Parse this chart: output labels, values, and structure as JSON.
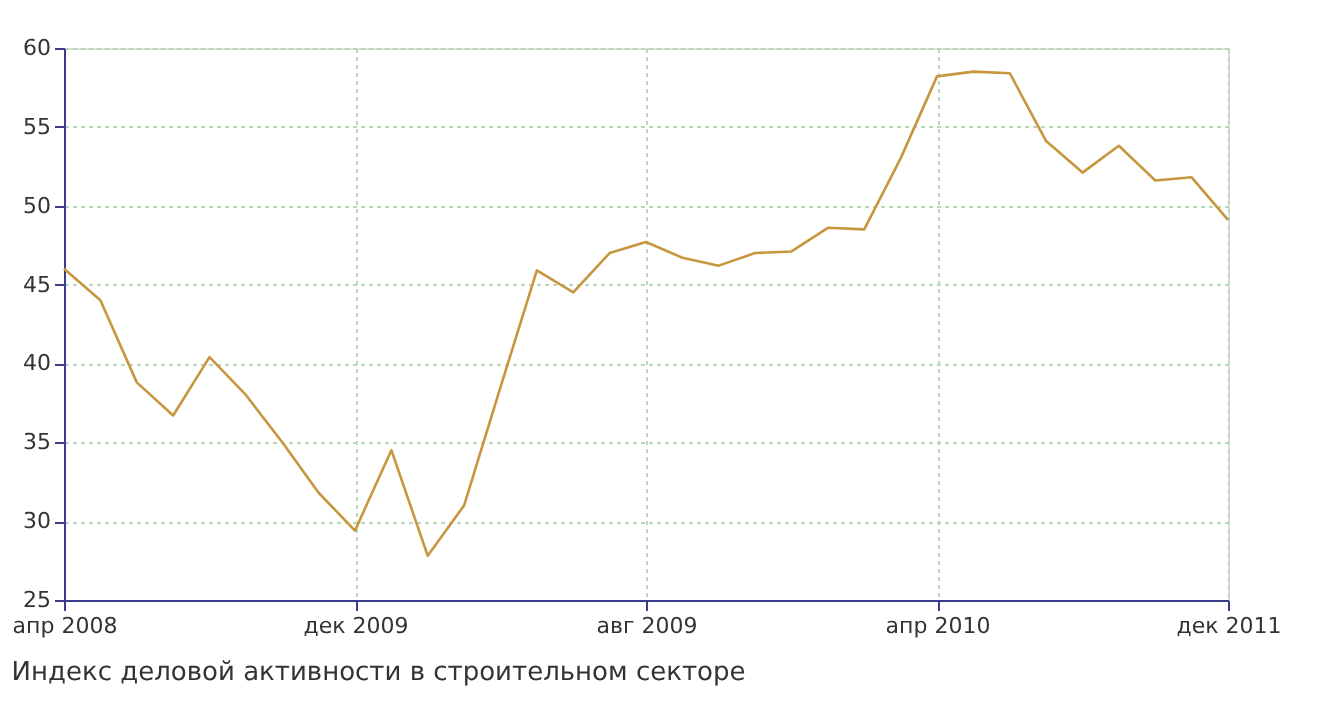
{
  "chart_data": {
    "type": "line",
    "title": "Индекс деловой активности в строительном секторе",
    "categories": [
      "апр 2008",
      null,
      null,
      null,
      null,
      null,
      null,
      null,
      "дек 2009",
      null,
      null,
      null,
      null,
      null,
      null,
      null,
      "авг 2009",
      null,
      null,
      null,
      null,
      null,
      null,
      null,
      "апр 2010",
      null,
      null,
      null,
      null,
      null,
      null,
      null,
      "дек 2011"
    ],
    "series": [
      {
        "color": "#c8963e",
        "values": [
          46,
          44,
          38.8,
          36.7,
          40.4,
          38,
          35,
          31.8,
          29.4,
          34.5,
          27.8,
          31,
          38.5,
          45.9,
          44.5,
          47,
          47.7,
          46.7,
          46.2,
          47,
          47.1,
          48.6,
          48.5,
          53,
          58.2,
          58.5,
          58.4,
          54.1,
          52.1,
          53.8,
          51.6,
          51.8,
          49.1
        ]
      }
    ],
    "ylim": [
      25,
      60
    ],
    "yticks": [
      25,
      30,
      35,
      40,
      45,
      50,
      55,
      60
    ],
    "grid": true,
    "marker": "none",
    "line_style": "solid"
  }
}
